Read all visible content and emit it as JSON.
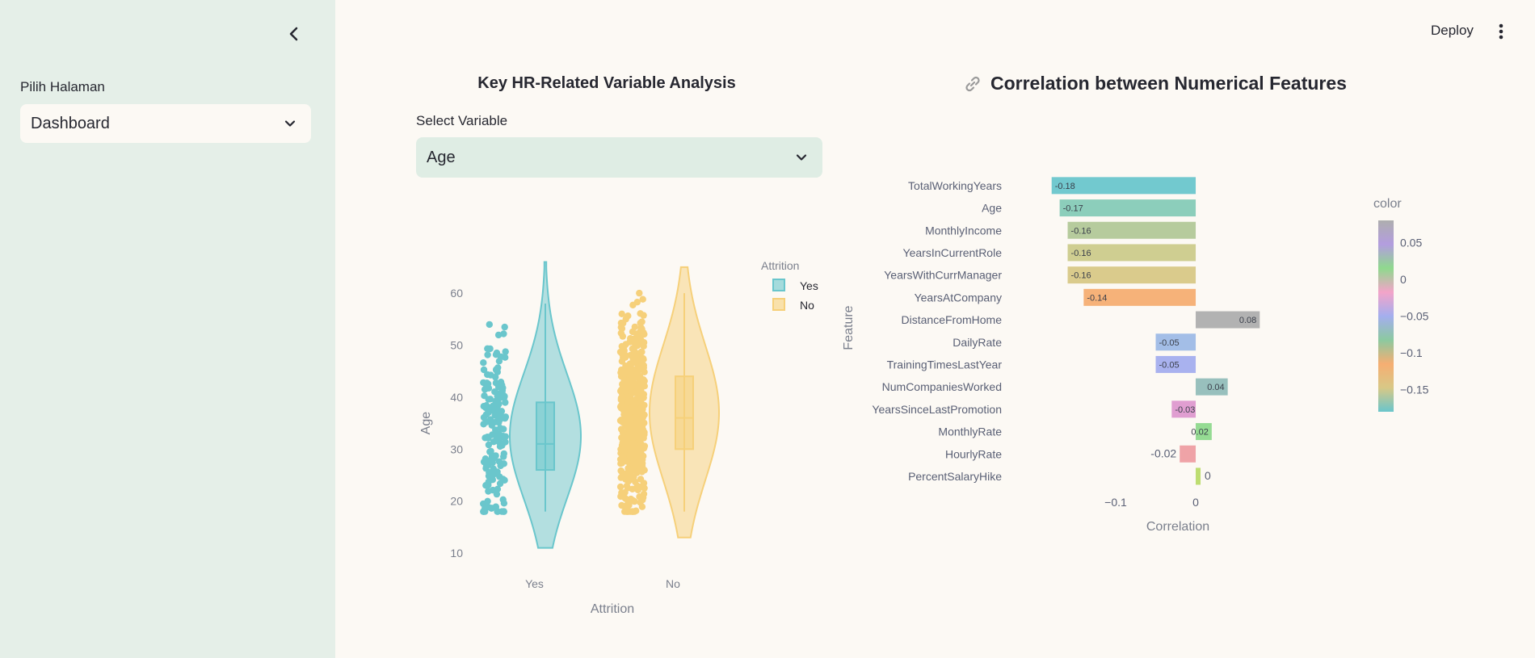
{
  "sidebar": {
    "page_label": "Pilih Halaman",
    "page_select_value": "Dashboard"
  },
  "header": {
    "deploy_label": "Deploy"
  },
  "violin_section": {
    "title": "Key HR-Related Variable Analysis",
    "select_label": "Select Variable",
    "select_value": "Age"
  },
  "corr_section": {
    "title_icon": "link-icon",
    "title": "Correlation between Numerical Features"
  },
  "colors": {
    "sidebar_bg": "#e5efe8",
    "main_bg": "#fcf9f4",
    "yes": "#6ac6cc",
    "no": "#f6d07a"
  },
  "chart_data": [
    {
      "type": "violin",
      "xlabel": "Attrition",
      "ylabel": "Age",
      "categories": [
        "Yes",
        "No"
      ],
      "yticks": [
        10,
        20,
        30,
        40,
        50,
        60
      ],
      "ylim": [
        8,
        67
      ],
      "legend": {
        "title": "Attrition",
        "position": "top-right",
        "entries": [
          "Yes",
          "No"
        ]
      },
      "series": [
        {
          "name": "Yes",
          "color": "#6ac6cc",
          "min": 18,
          "q1": 26,
          "median": 31,
          "q3": 39,
          "max": 58,
          "kde_range": [
            11,
            66
          ]
        },
        {
          "name": "No",
          "color": "#f6d07a",
          "min": 18,
          "q1": 30,
          "median": 36,
          "q3": 44,
          "max": 60,
          "kde_range": [
            13,
            65
          ]
        }
      ]
    },
    {
      "type": "bar",
      "orientation": "horizontal",
      "xlabel": "Correlation",
      "ylabel": "Feature",
      "xticks": [
        {
          "value": -0.1,
          "label": "−0.1"
        },
        {
          "value": 0,
          "label": "0"
        }
      ],
      "xlim": [
        -0.21,
        0.11
      ],
      "categories": [
        "TotalWorkingYears",
        "Age",
        "MonthlyIncome",
        "YearsInCurrentRole",
        "YearsWithCurrManager",
        "YearsAtCompany",
        "DistanceFromHome",
        "DailyRate",
        "TrainingTimesLastYear",
        "NumCompaniesWorked",
        "YearsSinceLastPromotion",
        "MonthlyRate",
        "HourlyRate",
        "PercentSalaryHike"
      ],
      "values": [
        -0.18,
        -0.17,
        -0.16,
        -0.16,
        -0.16,
        -0.14,
        0.08,
        -0.05,
        -0.05,
        0.04,
        -0.03,
        0.02,
        -0.02,
        0
      ],
      "value_labels": [
        "-0.18",
        "-0.17",
        "-0.16",
        "-0.16",
        "-0.16",
        "-0.14",
        "0.08",
        "-0.05",
        "-0.05",
        "0.04",
        "-0.03",
        "0.02",
        "-0.02",
        "0"
      ],
      "bar_colors": [
        "#6ac6cc",
        "#86cbb7",
        "#b2c898",
        "#cccb8b",
        "#d8c886",
        "#f6ae72",
        "#aeaeae",
        "#9ebbe6",
        "#a4aeee",
        "#92bdb9",
        "#de99cf",
        "#8fd98d",
        "#ee9ea2",
        "#bddd70"
      ],
      "colorbar": {
        "title": "color",
        "ticks": [
          {
            "value": 0.05,
            "label": "0.05"
          },
          {
            "value": 0,
            "label": "0"
          },
          {
            "value": -0.05,
            "label": "−0.05"
          },
          {
            "value": -0.1,
            "label": "−0.1"
          },
          {
            "value": -0.15,
            "label": "−0.15"
          }
        ],
        "range": [
          -0.18,
          0.08
        ]
      }
    }
  ]
}
